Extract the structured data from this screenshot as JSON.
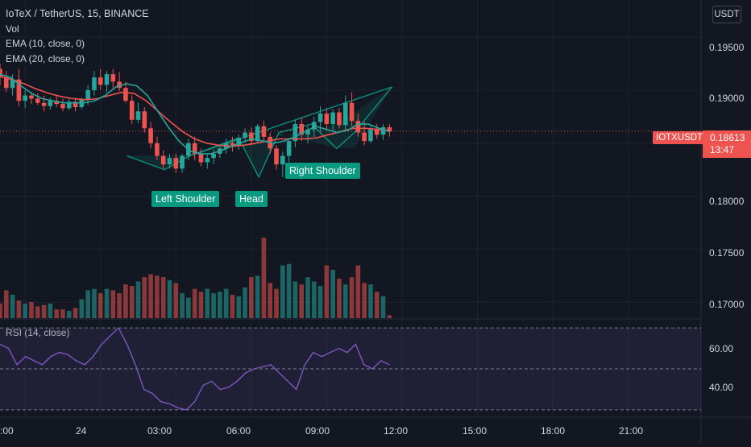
{
  "header": {
    "title": "IoTeX / TetherUS, 15, BINANCE",
    "indicators": [
      "Vol",
      "EMA (10, close, 0)",
      "EMA (20, close, 0)"
    ]
  },
  "currency_button": "USDT",
  "current_price": {
    "symbol": "IOTXUSDT",
    "price": "0.18613",
    "countdown": "13:47"
  },
  "pattern_labels": {
    "left": "Left Shoulder",
    "head": "Head",
    "right": "Right Shoulder"
  },
  "rsi": {
    "label": "RSI (14, close)",
    "ticks": [
      "60.00",
      "40.00"
    ]
  },
  "colors": {
    "up": "#26a69a",
    "down": "#ef5350",
    "ema10": "#26a69a",
    "ema20": "#ef5350",
    "rsi": "#7e57c2",
    "pattern": "#089981"
  },
  "chart_data": [
    {
      "type": "candlestick",
      "title": "IoTeX / TetherUS, 15, BINANCE",
      "y_ticks": [
        "0.19500",
        "0.19000",
        "0.18000",
        "0.17500",
        "0.17000"
      ],
      "x_ticks": [
        ":00",
        "24",
        "03:00",
        "06:00",
        "09:00",
        "12:00",
        "15:00",
        "18:00",
        "21:00"
      ],
      "ylim": [
        0.1685,
        0.1985
      ],
      "xlim_hours": [
        -4.0,
        23.9
      ],
      "bar_hours": 0.25,
      "candles_ohlc": [
        [
          0.192,
          0.1925,
          0.1905,
          0.1912
        ],
        [
          0.1912,
          0.1918,
          0.1898,
          0.1902
        ],
        [
          0.1902,
          0.1915,
          0.1895,
          0.191
        ],
        [
          0.191,
          0.192,
          0.1885,
          0.189
        ],
        [
          0.189,
          0.19,
          0.1883,
          0.1895
        ],
        [
          0.1895,
          0.1898,
          0.1887,
          0.1892
        ],
        [
          0.1892,
          0.1897,
          0.1886,
          0.1888
        ],
        [
          0.1888,
          0.1895,
          0.188,
          0.1885
        ],
        [
          0.1885,
          0.1893,
          0.1882,
          0.189
        ],
        [
          0.189,
          0.1895,
          0.1884,
          0.1887
        ],
        [
          0.1887,
          0.1892,
          0.188,
          0.1883
        ],
        [
          0.1883,
          0.1892,
          0.1881,
          0.1889
        ],
        [
          0.1889,
          0.1893,
          0.188,
          0.1884
        ],
        [
          0.1884,
          0.1893,
          0.1882,
          0.1891
        ],
        [
          0.1891,
          0.1905,
          0.1886,
          0.19
        ],
        [
          0.19,
          0.1918,
          0.1895,
          0.1912
        ],
        [
          0.1912,
          0.192,
          0.19,
          0.1905
        ],
        [
          0.1905,
          0.1918,
          0.1898,
          0.1915
        ],
        [
          0.1915,
          0.192,
          0.1902,
          0.1908
        ],
        [
          0.1908,
          0.1917,
          0.1899,
          0.1902
        ],
        [
          0.1902,
          0.1908,
          0.1888,
          0.189
        ],
        [
          0.189,
          0.1895,
          0.1868,
          0.1872
        ],
        [
          0.1872,
          0.1888,
          0.1869,
          0.188
        ],
        [
          0.188,
          0.1884,
          0.186,
          0.1864
        ],
        [
          0.1864,
          0.187,
          0.1845,
          0.185
        ],
        [
          0.185,
          0.1856,
          0.1834,
          0.1838
        ],
        [
          0.1838,
          0.1843,
          0.1826,
          0.183
        ],
        [
          0.183,
          0.184,
          0.1826,
          0.1836
        ],
        [
          0.1836,
          0.184,
          0.1822,
          0.1826
        ],
        [
          0.1826,
          0.184,
          0.1822,
          0.1838
        ],
        [
          0.1838,
          0.1854,
          0.1834,
          0.185
        ],
        [
          0.185,
          0.1856,
          0.1834,
          0.184
        ],
        [
          0.184,
          0.1845,
          0.1828,
          0.1832
        ],
        [
          0.1832,
          0.184,
          0.1826,
          0.1836
        ],
        [
          0.1836,
          0.1844,
          0.183,
          0.184
        ],
        [
          0.184,
          0.1848,
          0.1836,
          0.1845
        ],
        [
          0.1845,
          0.1854,
          0.184,
          0.185
        ],
        [
          0.185,
          0.1856,
          0.1842,
          0.1848
        ],
        [
          0.1848,
          0.1858,
          0.1844,
          0.1855
        ],
        [
          0.1855,
          0.1864,
          0.185,
          0.186
        ],
        [
          0.186,
          0.1865,
          0.1848,
          0.1852
        ],
        [
          0.1852,
          0.1868,
          0.185,
          0.1866
        ],
        [
          0.1866,
          0.1871,
          0.1852,
          0.1856
        ],
        [
          0.1856,
          0.186,
          0.184,
          0.1845
        ],
        [
          0.1845,
          0.1848,
          0.1825,
          0.183
        ],
        [
          0.183,
          0.1842,
          0.1818,
          0.1838
        ],
        [
          0.1838,
          0.1855,
          0.1832,
          0.1852
        ],
        [
          0.1852,
          0.1872,
          0.1846,
          0.1868
        ],
        [
          0.1868,
          0.1874,
          0.1852,
          0.1858
        ],
        [
          0.1858,
          0.1866,
          0.185,
          0.1863
        ],
        [
          0.1863,
          0.1875,
          0.1856,
          0.187
        ],
        [
          0.187,
          0.1885,
          0.186,
          0.1878
        ],
        [
          0.1878,
          0.1883,
          0.1862,
          0.1868
        ],
        [
          0.1868,
          0.1882,
          0.1862,
          0.1879
        ],
        [
          0.1879,
          0.1883,
          0.1864,
          0.1867
        ],
        [
          0.1867,
          0.1895,
          0.1862,
          0.1888
        ],
        [
          0.1888,
          0.1898,
          0.1866,
          0.1871
        ],
        [
          0.1871,
          0.1878,
          0.1856,
          0.186
        ],
        [
          0.186,
          0.187,
          0.1848,
          0.1852
        ],
        [
          0.1852,
          0.1866,
          0.185,
          0.1863
        ],
        [
          0.1863,
          0.1868,
          0.1854,
          0.1858
        ],
        [
          0.1858,
          0.1868,
          0.1853,
          0.1865
        ],
        [
          0.1865,
          0.1868,
          0.1856,
          0.1861
        ]
      ],
      "ema10": [
        0.1915,
        0.1912,
        0.1904,
        0.1897,
        0.1892,
        0.189,
        0.1888,
        0.1888,
        0.1888,
        0.189,
        0.1895,
        0.1903,
        0.1906,
        0.1904,
        0.1895,
        0.188,
        0.1865,
        0.1852,
        0.1843,
        0.184,
        0.184,
        0.1843,
        0.1847,
        0.1851,
        0.1854,
        0.1852,
        0.185,
        0.1852,
        0.1856,
        0.1861,
        0.1866,
        0.1863,
        0.186,
        0.1862,
        0.1868,
        0.1868,
        0.1864,
        0.1861
      ],
      "ema20": [
        0.1913,
        0.191,
        0.1906,
        0.1901,
        0.1897,
        0.1894,
        0.1892,
        0.1891,
        0.1892,
        0.1895,
        0.1898,
        0.1897,
        0.189,
        0.188,
        0.187,
        0.1861,
        0.1854,
        0.185,
        0.1848,
        0.1847,
        0.1848,
        0.185,
        0.1852,
        0.1854,
        0.1854,
        0.1854,
        0.1855,
        0.1858,
        0.1861,
        0.1864,
        0.1864,
        0.1863,
        0.1862
      ],
      "current_price": 0.18613
    },
    {
      "type": "bar",
      "name": "Vol",
      "values": [
        20,
        38,
        32,
        24,
        20,
        22,
        16,
        18,
        20,
        12,
        12,
        10,
        14,
        26,
        38,
        40,
        34,
        40,
        38,
        34,
        46,
        44,
        50,
        56,
        60,
        58,
        56,
        52,
        48,
        34,
        28,
        40,
        36,
        40,
        34,
        36,
        40,
        32,
        30,
        42,
        56,
        58,
        110,
        48,
        40,
        72,
        74,
        50,
        46,
        56,
        50,
        44,
        72,
        66,
        54,
        46,
        56,
        72,
        48,
        46,
        36,
        30,
        4
      ]
    },
    {
      "type": "line",
      "name": "RSI (14, close)",
      "ylim": [
        28,
        72
      ],
      "ref_levels": [
        70,
        50,
        30
      ],
      "values": [
        62,
        60,
        52,
        56,
        54,
        52,
        56,
        58,
        57,
        54,
        52,
        56,
        62,
        66,
        70,
        62,
        52,
        40,
        38,
        34,
        33,
        31,
        30,
        34,
        42,
        44,
        40,
        41,
        44,
        48,
        50,
        51,
        52,
        48,
        44,
        40,
        52,
        58,
        56,
        58,
        60,
        58,
        62,
        52,
        50,
        54,
        52
      ]
    }
  ]
}
